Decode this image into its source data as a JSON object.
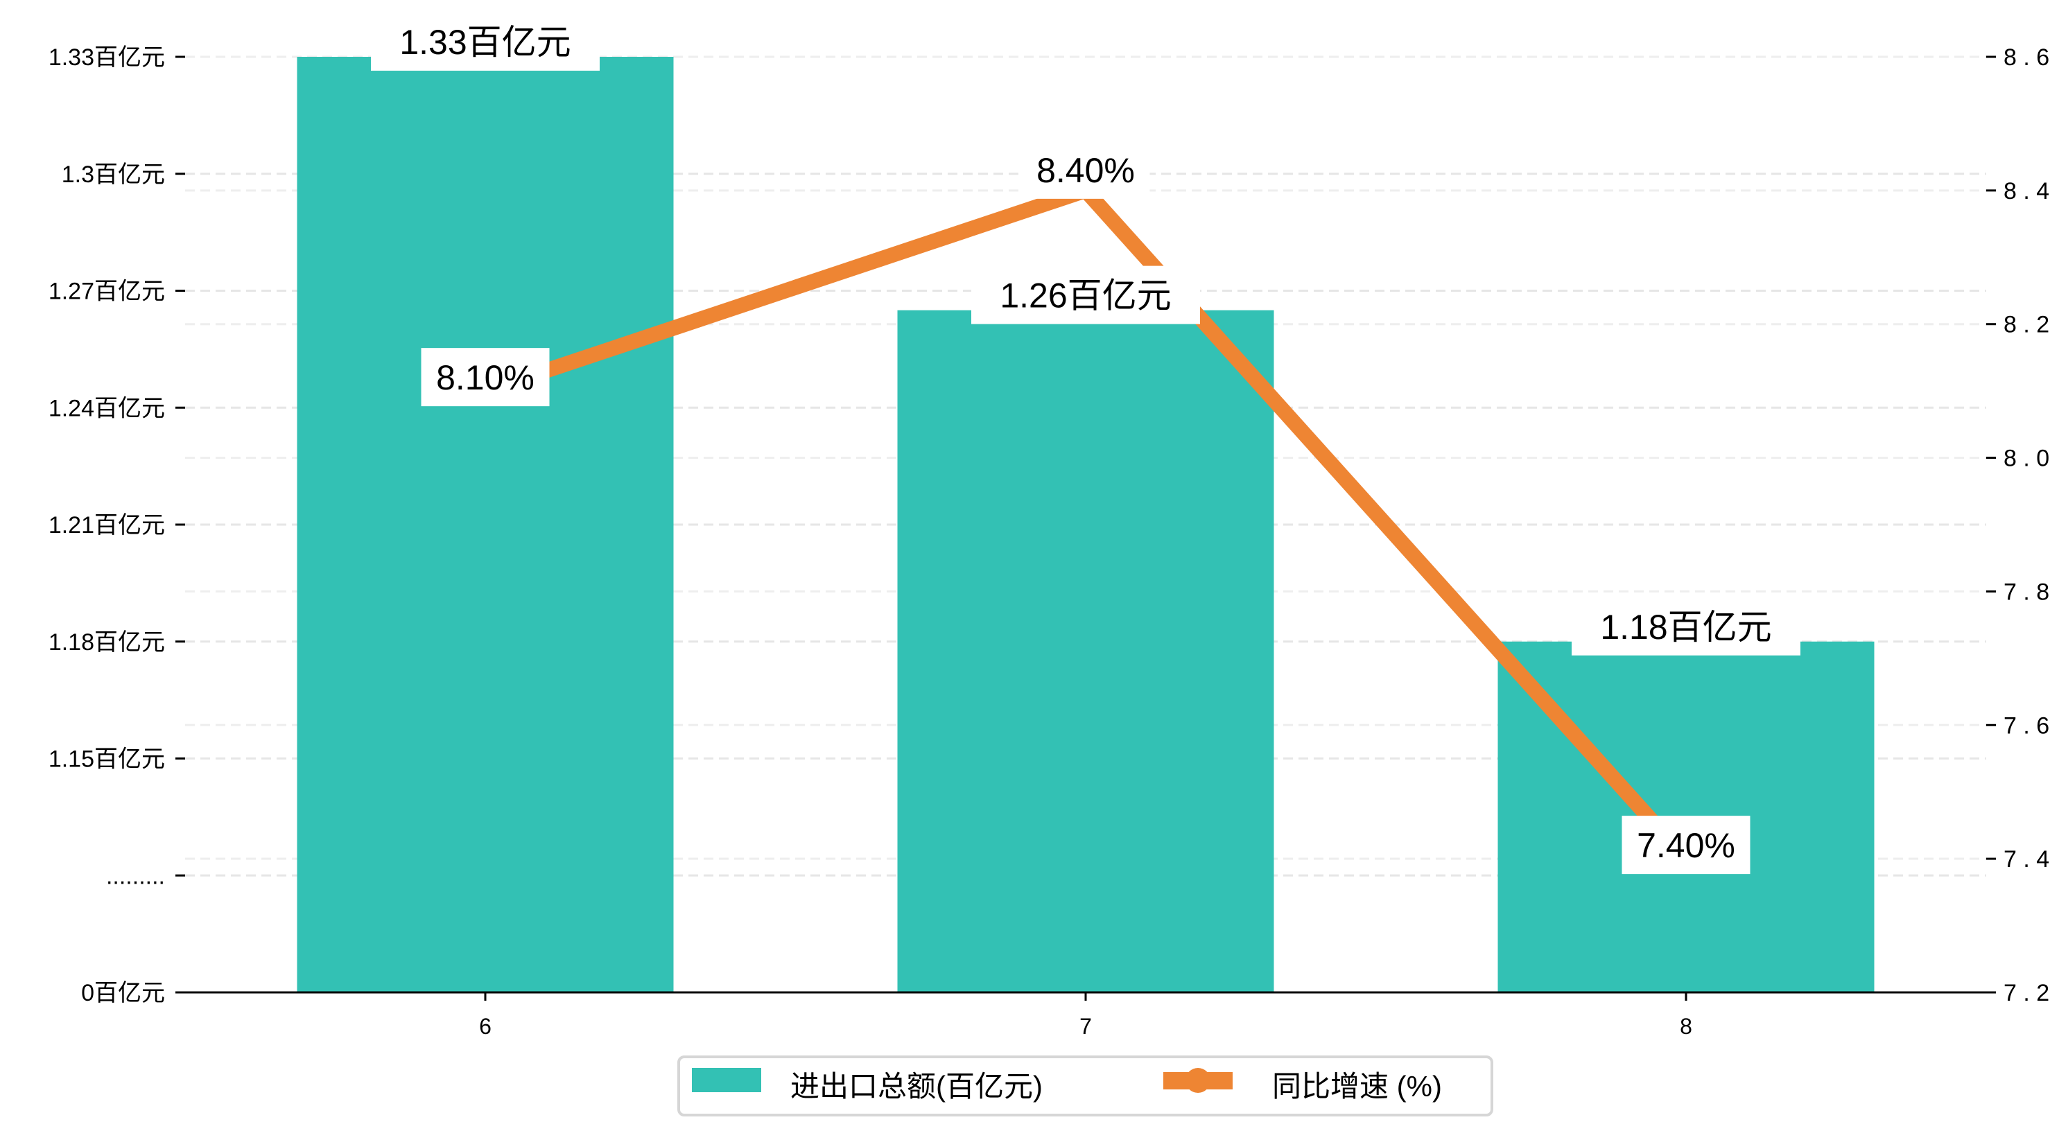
{
  "chart_data": {
    "type": "bar+line",
    "categories": [
      "6",
      "7",
      "8"
    ],
    "series": [
      {
        "name": "进出口总额(百亿元)",
        "axis": "left",
        "type": "bar",
        "color": "#33c1b4",
        "values": [
          1.33,
          1.265,
          1.18
        ],
        "labels": [
          "1.33百亿元",
          "1.26百亿元",
          "1.18百亿元"
        ]
      },
      {
        "name": "同比增速 (%)",
        "axis": "right",
        "type": "line",
        "color": "#ee8533",
        "values": [
          8.1,
          8.4,
          7.4
        ],
        "labels": [
          "8.10%",
          "8.40%",
          "7.40%"
        ]
      }
    ],
    "left_axis": {
      "ticks": [
        {
          "value": 1.33,
          "label": "1.33百亿元"
        },
        {
          "value": 1.3,
          "label": "1.3百亿元"
        },
        {
          "value": 1.27,
          "label": "1.27百亿元"
        },
        {
          "value": 1.24,
          "label": "1.24百亿元"
        },
        {
          "value": 1.21,
          "label": "1.21百亿元"
        },
        {
          "value": 1.18,
          "label": "1.18百亿元"
        },
        {
          "value": 1.15,
          "label": "1.15百亿元"
        },
        {
          "value": null,
          "label": "........."
        },
        {
          "value": 0,
          "label": "0百亿元"
        }
      ],
      "broken": true
    },
    "right_axis": {
      "ylim": [
        7.2,
        8.6
      ],
      "ticks": [
        "7.2",
        "7.4",
        "7.6",
        "7.8",
        "8.0",
        "8.2",
        "8.4",
        "8.6"
      ]
    },
    "grid": true,
    "legend": {
      "placement": "bottom-center",
      "items": [
        "进出口总额(百亿元)",
        "同比增速 (%)"
      ]
    }
  }
}
